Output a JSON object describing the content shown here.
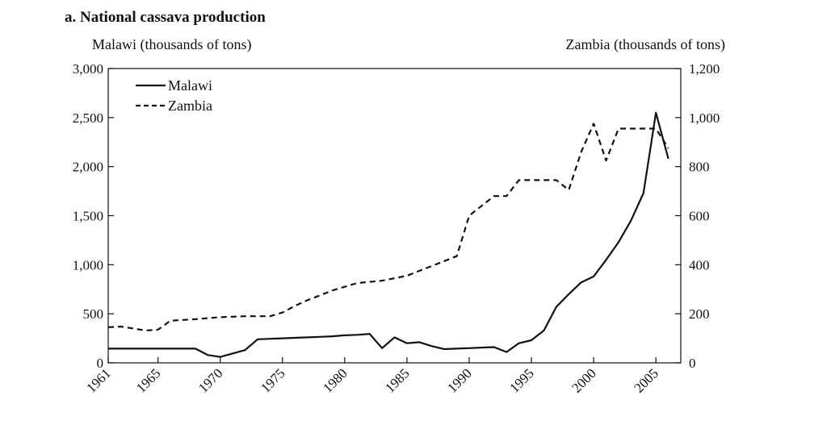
{
  "chart_data": {
    "type": "line",
    "title": "a.   National cassava production",
    "ylabel_left": "Malawi (thousands of tons)",
    "ylabel_right": "Zambia (thousands of tons)",
    "xlim": [
      1961,
      2007
    ],
    "ylim_left": [
      0,
      3000
    ],
    "ylim_right": [
      0,
      1200
    ],
    "x_ticks": [
      1961,
      1965,
      1970,
      1975,
      1980,
      1985,
      1990,
      1995,
      2000,
      2005
    ],
    "x_tick_labels": [
      "1961",
      "1965",
      "1970",
      "1975",
      "1980",
      "1985",
      "1990",
      "1995",
      "2000",
      "2005"
    ],
    "y_ticks_left": [
      0,
      500,
      1000,
      1500,
      2000,
      2500,
      3000
    ],
    "y_tick_labels_left": [
      "0",
      "500",
      "1,000",
      "1,500",
      "2,000",
      "2,500",
      "3,000"
    ],
    "y_ticks_right": [
      0,
      200,
      400,
      600,
      800,
      1000,
      1200
    ],
    "y_tick_labels_right": [
      "0",
      "200",
      "400",
      "600",
      "800",
      "1,000",
      "1,200"
    ],
    "grid": false,
    "legend_position": "top-left",
    "series": [
      {
        "name": "Malawi",
        "axis": "left",
        "line_style": "solid",
        "x": [
          1961,
          1962,
          1963,
          1964,
          1965,
          1966,
          1967,
          1968,
          1969,
          1970,
          1971,
          1972,
          1973,
          1974,
          1975,
          1976,
          1977,
          1978,
          1979,
          1980,
          1981,
          1982,
          1983,
          1984,
          1985,
          1986,
          1987,
          1988,
          1989,
          1990,
          1991,
          1992,
          1993,
          1994,
          1995,
          1996,
          1997,
          1998,
          1999,
          2000,
          2001,
          2002,
          2003,
          2004,
          2005,
          2006
        ],
        "values": [
          145,
          145,
          145,
          145,
          145,
          145,
          145,
          145,
          80,
          60,
          95,
          130,
          240,
          245,
          250,
          255,
          260,
          265,
          270,
          280,
          285,
          295,
          150,
          260,
          200,
          210,
          170,
          140,
          145,
          150,
          155,
          160,
          110,
          200,
          230,
          330,
          570,
          700,
          820,
          880,
          1050,
          1230,
          1450,
          1730,
          2550,
          2080
        ]
      },
      {
        "name": "Zambia",
        "axis": "right",
        "line_style": "dashed",
        "x": [
          1961,
          1962,
          1963,
          1964,
          1965,
          1966,
          1967,
          1968,
          1969,
          1970,
          1971,
          1972,
          1973,
          1974,
          1975,
          1976,
          1977,
          1978,
          1979,
          1980,
          1981,
          1982,
          1983,
          1984,
          1985,
          1986,
          1987,
          1988,
          1989,
          1990,
          1991,
          1992,
          1993,
          1994,
          1995,
          1996,
          1997,
          1998,
          1999,
          2000,
          2001,
          2002,
          2003,
          2004,
          2005,
          2006
        ],
        "values": [
          145,
          148,
          140,
          132,
          135,
          172,
          175,
          178,
          182,
          186,
          188,
          190,
          190,
          190,
          205,
          232,
          255,
          275,
          295,
          310,
          325,
          330,
          335,
          345,
          355,
          375,
          395,
          415,
          435,
          600,
          640,
          680,
          680,
          745,
          745,
          745,
          745,
          705,
          860,
          975,
          825,
          955,
          955,
          955,
          955,
          875
        ]
      }
    ]
  }
}
